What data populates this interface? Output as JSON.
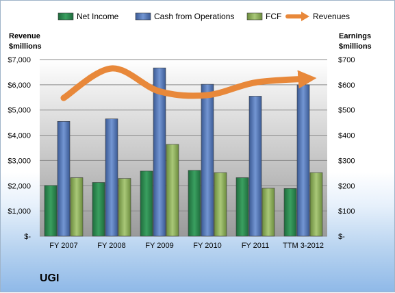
{
  "company": "UGI",
  "colors": {
    "net_income": "#2e8b57",
    "cash_from_operations": "#5b7fbf",
    "fcf": "#8fb05a",
    "revenues": "#e8883a"
  },
  "chart_data": {
    "type": "bar",
    "categories": [
      "FY 2007",
      "FY 2008",
      "FY 2009",
      "FY 2010",
      "FY 2011",
      "TTM 3-2012"
    ],
    "series": [
      {
        "name": "Net Income",
        "axis": "right",
        "values": [
          201,
          213,
          258,
          261,
          232,
          189
        ]
      },
      {
        "name": "Cash from Operations",
        "axis": "right",
        "values": [
          455,
          465,
          667,
          602,
          555,
          600
        ]
      },
      {
        "name": "FCF",
        "axis": "right",
        "values": [
          232,
          229,
          364,
          252,
          190,
          252
        ]
      },
      {
        "name": "Revenues",
        "axis": "left",
        "type": "line",
        "values": [
          5477,
          6648,
          5738,
          5591,
          6091,
          6241
        ]
      }
    ],
    "left_axis": {
      "title_lines": [
        "Revenue",
        "$millions"
      ],
      "ylim": [
        0,
        7000
      ],
      "ticks": [
        "$-",
        "$1,000",
        "$2,000",
        "$3,000",
        "$4,000",
        "$5,000",
        "$6,000",
        "$7,000"
      ]
    },
    "right_axis": {
      "title_lines": [
        "Earnings",
        "$millions"
      ],
      "ylim": [
        0,
        700
      ],
      "ticks": [
        "$-",
        "$100",
        "$200",
        "$300",
        "$400",
        "$500",
        "$600",
        "$700"
      ]
    },
    "legend": [
      "Net Income",
      "Cash from Operations",
      "FCF",
      "Revenues"
    ],
    "legend_position": "top",
    "grid": true
  }
}
